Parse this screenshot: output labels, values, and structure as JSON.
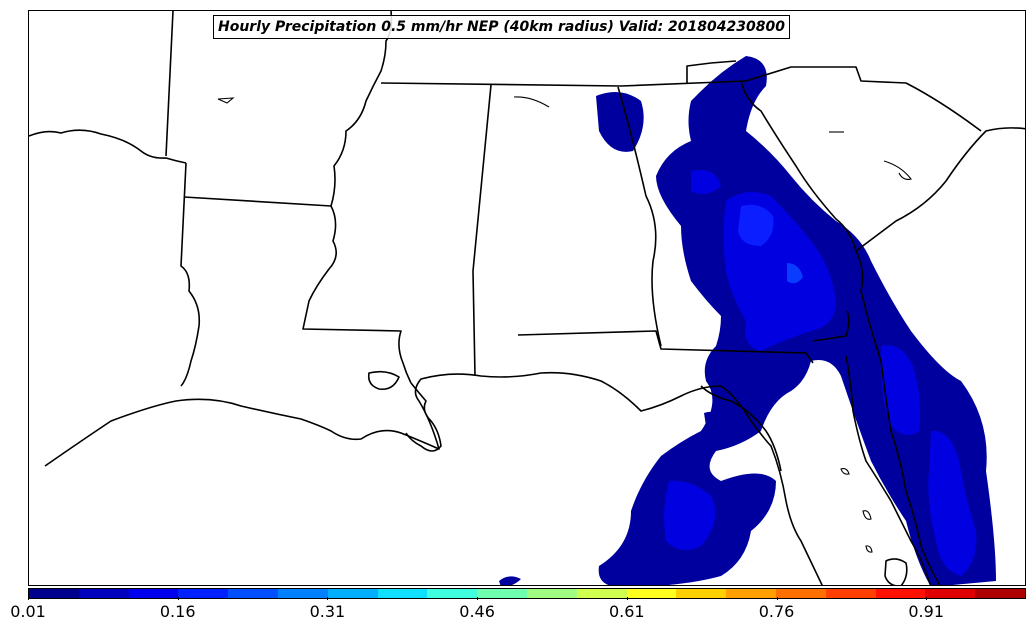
{
  "map": {
    "title": "Hourly Precipitation 0.5 mm/hr NEP (40km radius) Valid: 201804230800",
    "variable": "Neighborhood exceedance probability",
    "threshold": "0.5 mm/hr",
    "radius": "40km",
    "valid_time": "201804230800",
    "region": "US Gulf Coast / Southeast",
    "colors": {
      "prob_low": "#0000a0",
      "prob_mid": "#0000e6",
      "prob_high": "#0a28ff",
      "boundary": "#000000",
      "background": "#ffffff"
    }
  },
  "colorbar": {
    "levels": [
      "0.01",
      "0.06",
      "0.11",
      "0.16",
      "0.21",
      "0.26",
      "0.31",
      "0.36",
      "0.41",
      "0.46",
      "0.51",
      "0.56",
      "0.61",
      "0.66",
      "0.71",
      "0.76",
      "0.81",
      "0.86",
      "0.91",
      "0.96",
      "1.01"
    ],
    "colors": [
      "#00008f",
      "#0000bf",
      "#0000ef",
      "#0020ff",
      "#0050ff",
      "#0080ff",
      "#00b0ff",
      "#10e0ff",
      "#40ffdf",
      "#70ffaf",
      "#a0ff80",
      "#d0ff50",
      "#ffff20",
      "#ffd000",
      "#ffa000",
      "#ff7000",
      "#ff4000",
      "#ff1000",
      "#df0000",
      "#af0000"
    ],
    "tick_labels": [
      "0.01",
      "0.16",
      "0.31",
      "0.46",
      "0.61",
      "0.76",
      "0.91"
    ]
  }
}
